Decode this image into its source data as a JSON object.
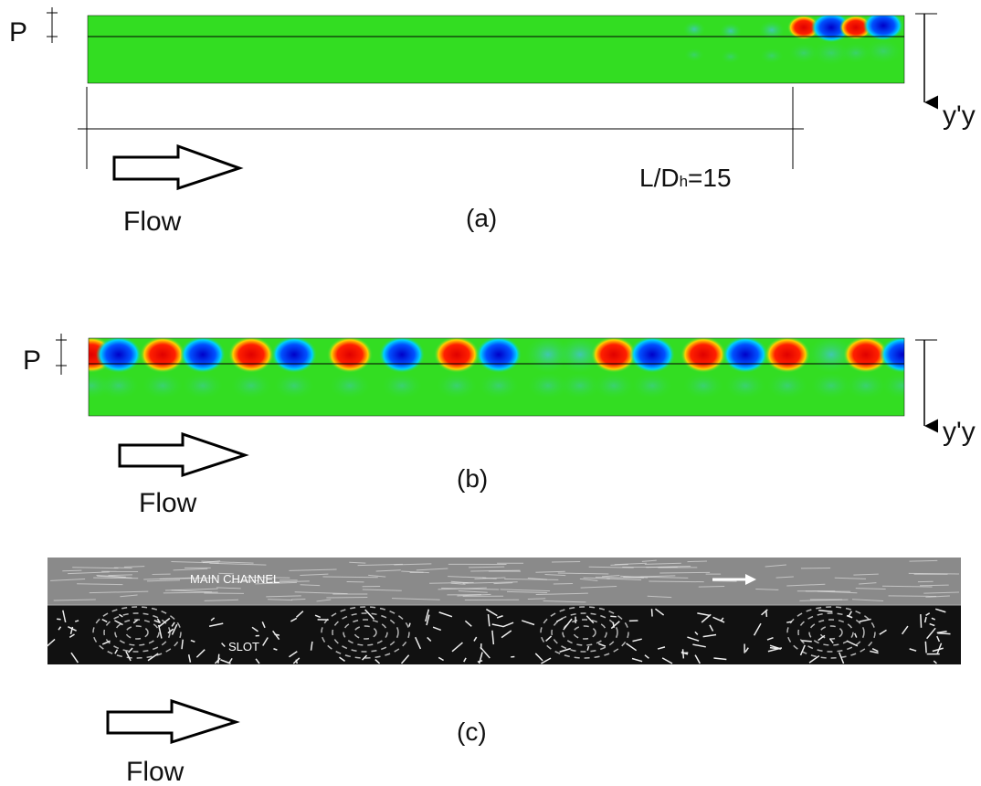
{
  "panels": [
    {
      "label": "(a)",
      "flow": "Flow",
      "pitch": "P",
      "axis": "y'y",
      "length": {
        "main": "L/D",
        "sub": "h",
        "rest": "=15"
      }
    },
    {
      "label": "(b)",
      "flow": "Flow",
      "pitch": "P",
      "axis": "y'y"
    },
    {
      "label": "(c)",
      "flow": "Flow",
      "regions": [
        "MAIN CHANNEL",
        "SLOT"
      ]
    }
  ]
}
